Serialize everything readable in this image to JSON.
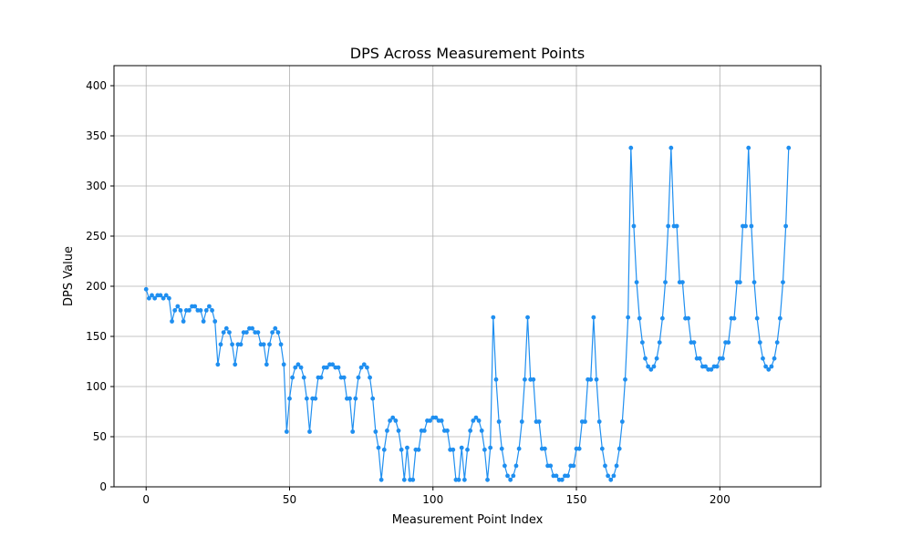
{
  "chart_data": {
    "type": "line",
    "title": "DPS Across Measurement Points",
    "xlabel": "Measurement Point Index",
    "ylabel": "DPS Value",
    "xlim": [
      -11.2,
      235.2
    ],
    "ylim": [
      0,
      420
    ],
    "xticks": [
      0,
      50,
      100,
      150,
      200
    ],
    "yticks": [
      0,
      50,
      100,
      150,
      200,
      250,
      300,
      350,
      400
    ],
    "grid": true,
    "line_color": "#1f8ff0",
    "series": [
      {
        "values": [
          197,
          188,
          191,
          188,
          191,
          191,
          188,
          191,
          188,
          165,
          176,
          180,
          176,
          165,
          176,
          176,
          180,
          180,
          176,
          176,
          165,
          176,
          180,
          176,
          165,
          122,
          142,
          154,
          158,
          154,
          142,
          122,
          142,
          142,
          154,
          154,
          158,
          158,
          154,
          154,
          142,
          142,
          122,
          142,
          154,
          158,
          154,
          142,
          122,
          55,
          88,
          109,
          119,
          122,
          119,
          109,
          88,
          55,
          88,
          88,
          109,
          109,
          119,
          119,
          122,
          122,
          119,
          119,
          109,
          109,
          88,
          88,
          55,
          88,
          109,
          119,
          122,
          119,
          109,
          88,
          55,
          39,
          7,
          37,
          56,
          66,
          69,
          66,
          56,
          37,
          7,
          39,
          7,
          7,
          37,
          37,
          56,
          56,
          66,
          66,
          69,
          69,
          66,
          66,
          56,
          56,
          37,
          37,
          7,
          7,
          39,
          7,
          37,
          56,
          66,
          69,
          66,
          56,
          37,
          7,
          39,
          169,
          107,
          65,
          38,
          21,
          11,
          7,
          11,
          21,
          38,
          65,
          107,
          169,
          107,
          107,
          65,
          65,
          38,
          38,
          21,
          21,
          11,
          11,
          7,
          7,
          11,
          11,
          21,
          21,
          38,
          38,
          65,
          65,
          107,
          107,
          169,
          107,
          65,
          38,
          21,
          11,
          7,
          11,
          21,
          38,
          65,
          107,
          169,
          338,
          260,
          204,
          168,
          144,
          128,
          120,
          117,
          120,
          128,
          144,
          168,
          204,
          260,
          338,
          260,
          260,
          204,
          204,
          168,
          168,
          144,
          144,
          128,
          128,
          120,
          120,
          117,
          117,
          120,
          120,
          128,
          128,
          144,
          144,
          168,
          168,
          204,
          204,
          260,
          260,
          338,
          260,
          204,
          168,
          144,
          128,
          120,
          117,
          120,
          128,
          144,
          168,
          204,
          260,
          338
        ]
      }
    ]
  }
}
